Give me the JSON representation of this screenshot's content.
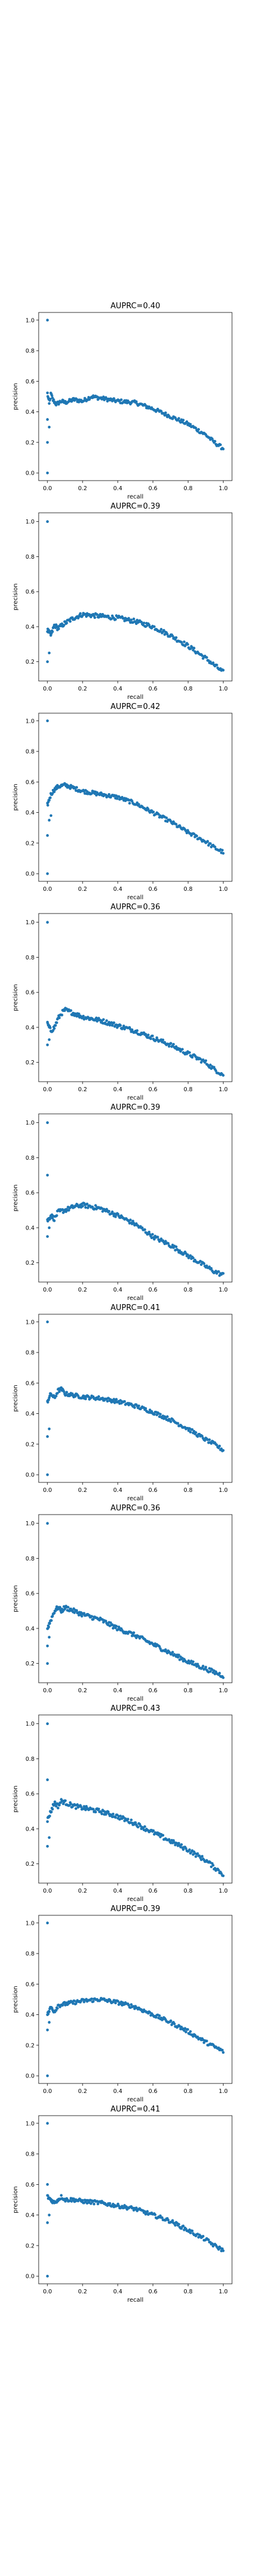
{
  "figure": {
    "background": "#ffffff"
  },
  "style": {
    "series_color": "#1f77b4",
    "axis_color": "#000000"
  },
  "chart_data": [
    {
      "type": "scatter",
      "title": "AUPRC=0.40",
      "xlabel": "recall",
      "ylabel": "precision",
      "xlim": [
        -0.05,
        1.05
      ],
      "ylim": [
        -0.05,
        1.05
      ],
      "xticks": [
        0.0,
        0.2,
        0.4,
        0.6,
        0.8,
        1.0
      ],
      "xtick_labels": [
        "0.0",
        "0.2",
        "0.4",
        "0.6",
        "0.8",
        "1.0"
      ],
      "yticks": [
        0.0,
        0.2,
        0.4,
        0.6,
        0.8,
        1.0
      ],
      "ytick_labels": [
        "0.0",
        "0.2",
        "0.4",
        "0.6",
        "0.8",
        "1.0"
      ],
      "grid": false,
      "curve": [
        [
          0.0,
          0.52
        ],
        [
          0.01,
          0.45
        ],
        [
          0.02,
          0.52
        ],
        [
          0.03,
          0.48
        ],
        [
          0.05,
          0.45
        ],
        [
          0.08,
          0.47
        ],
        [
          0.1,
          0.46
        ],
        [
          0.15,
          0.48
        ],
        [
          0.2,
          0.47
        ],
        [
          0.25,
          0.5
        ],
        [
          0.3,
          0.49
        ],
        [
          0.4,
          0.47
        ],
        [
          0.5,
          0.46
        ],
        [
          0.6,
          0.42
        ],
        [
          0.7,
          0.37
        ],
        [
          0.8,
          0.32
        ],
        [
          0.9,
          0.25
        ],
        [
          0.95,
          0.2
        ],
        [
          1.0,
          0.16
        ]
      ],
      "outliers": [
        [
          0.0,
          1.0
        ],
        [
          0.0,
          0.0
        ],
        [
          0.0,
          0.2
        ],
        [
          0.01,
          0.3
        ],
        [
          0.0,
          0.35
        ]
      ]
    },
    {
      "type": "scatter",
      "title": "AUPRC=0.39",
      "xlabel": "recall",
      "ylabel": "precision",
      "xlim": [
        -0.05,
        1.05
      ],
      "ylim": [
        0.09,
        1.05
      ],
      "xticks": [
        0.0,
        0.2,
        0.4,
        0.6,
        0.8,
        1.0
      ],
      "xtick_labels": [
        "0.0",
        "0.2",
        "0.4",
        "0.6",
        "0.8",
        "1.0"
      ],
      "yticks": [
        0.2,
        0.4,
        0.6,
        0.8,
        1.0
      ],
      "ytick_labels": [
        "0.2",
        "0.4",
        "0.6",
        "0.8",
        "1.0"
      ],
      "grid": false,
      "curve": [
        [
          0.0,
          0.38
        ],
        [
          0.02,
          0.35
        ],
        [
          0.04,
          0.41
        ],
        [
          0.06,
          0.39
        ],
        [
          0.1,
          0.42
        ],
        [
          0.15,
          0.45
        ],
        [
          0.2,
          0.47
        ],
        [
          0.3,
          0.46
        ],
        [
          0.4,
          0.45
        ],
        [
          0.5,
          0.43
        ],
        [
          0.6,
          0.4
        ],
        [
          0.7,
          0.35
        ],
        [
          0.8,
          0.29
        ],
        [
          0.9,
          0.22
        ],
        [
          0.95,
          0.18
        ],
        [
          1.0,
          0.14
        ]
      ],
      "outliers": [
        [
          0.0,
          1.0
        ],
        [
          0.0,
          0.2
        ],
        [
          0.01,
          0.25
        ]
      ]
    },
    {
      "type": "scatter",
      "title": "AUPRC=0.42",
      "xlabel": "recall",
      "ylabel": "precision",
      "xlim": [
        -0.05,
        1.05
      ],
      "ylim": [
        -0.05,
        1.05
      ],
      "xticks": [
        0.0,
        0.2,
        0.4,
        0.6,
        0.8,
        1.0
      ],
      "xtick_labels": [
        "0.0",
        "0.2",
        "0.4",
        "0.6",
        "0.8",
        "1.0"
      ],
      "yticks": [
        0.0,
        0.2,
        0.4,
        0.6,
        0.8,
        1.0
      ],
      "ytick_labels": [
        "0.0",
        "0.2",
        "0.4",
        "0.6",
        "0.8",
        "1.0"
      ],
      "grid": false,
      "curve": [
        [
          0.0,
          0.45
        ],
        [
          0.02,
          0.52
        ],
        [
          0.04,
          0.55
        ],
        [
          0.06,
          0.57
        ],
        [
          0.1,
          0.58
        ],
        [
          0.15,
          0.56
        ],
        [
          0.2,
          0.54
        ],
        [
          0.3,
          0.52
        ],
        [
          0.4,
          0.5
        ],
        [
          0.5,
          0.46
        ],
        [
          0.6,
          0.4
        ],
        [
          0.7,
          0.34
        ],
        [
          0.8,
          0.27
        ],
        [
          0.9,
          0.21
        ],
        [
          0.95,
          0.17
        ],
        [
          1.0,
          0.14
        ]
      ],
      "outliers": [
        [
          0.0,
          1.0
        ],
        [
          0.0,
          0.0
        ],
        [
          0.0,
          0.25
        ],
        [
          0.01,
          0.35
        ],
        [
          0.02,
          0.38
        ]
      ]
    },
    {
      "type": "scatter",
      "title": "AUPRC=0.36",
      "xlabel": "recall",
      "ylabel": "precision",
      "xlim": [
        -0.05,
        1.05
      ],
      "ylim": [
        0.09,
        1.05
      ],
      "xticks": [
        0.0,
        0.2,
        0.4,
        0.6,
        0.8,
        1.0
      ],
      "xtick_labels": [
        "0.0",
        "0.2",
        "0.4",
        "0.6",
        "0.8",
        "1.0"
      ],
      "yticks": [
        0.2,
        0.4,
        0.6,
        0.8,
        1.0
      ],
      "ytick_labels": [
        "0.2",
        "0.4",
        "0.6",
        "0.8",
        "1.0"
      ],
      "grid": false,
      "curve": [
        [
          0.0,
          0.42
        ],
        [
          0.02,
          0.38
        ],
        [
          0.04,
          0.4
        ],
        [
          0.06,
          0.45
        ],
        [
          0.08,
          0.48
        ],
        [
          0.1,
          0.5
        ],
        [
          0.15,
          0.48
        ],
        [
          0.2,
          0.46
        ],
        [
          0.3,
          0.44
        ],
        [
          0.4,
          0.41
        ],
        [
          0.5,
          0.38
        ],
        [
          0.6,
          0.34
        ],
        [
          0.7,
          0.3
        ],
        [
          0.8,
          0.25
        ],
        [
          0.9,
          0.2
        ],
        [
          0.95,
          0.16
        ],
        [
          1.0,
          0.13
        ]
      ],
      "outliers": [
        [
          0.0,
          1.0
        ],
        [
          0.0,
          0.3
        ],
        [
          0.01,
          0.33
        ]
      ]
    },
    {
      "type": "scatter",
      "title": "AUPRC=0.39",
      "xlabel": "recall",
      "ylabel": "precision",
      "xlim": [
        -0.05,
        1.05
      ],
      "ylim": [
        0.09,
        1.05
      ],
      "xticks": [
        0.0,
        0.2,
        0.4,
        0.6,
        0.8,
        1.0
      ],
      "xtick_labels": [
        "0.0",
        "0.2",
        "0.4",
        "0.6",
        "0.8",
        "1.0"
      ],
      "yticks": [
        0.2,
        0.4,
        0.6,
        0.8,
        1.0
      ],
      "ytick_labels": [
        "0.2",
        "0.4",
        "0.6",
        "0.8",
        "1.0"
      ],
      "grid": false,
      "curve": [
        [
          0.0,
          0.44
        ],
        [
          0.02,
          0.47
        ],
        [
          0.04,
          0.45
        ],
        [
          0.06,
          0.49
        ],
        [
          0.1,
          0.5
        ],
        [
          0.15,
          0.52
        ],
        [
          0.2,
          0.53
        ],
        [
          0.3,
          0.51
        ],
        [
          0.4,
          0.47
        ],
        [
          0.5,
          0.42
        ],
        [
          0.6,
          0.35
        ],
        [
          0.7,
          0.3
        ],
        [
          0.8,
          0.24
        ],
        [
          0.9,
          0.18
        ],
        [
          0.95,
          0.15
        ],
        [
          1.0,
          0.13
        ]
      ],
      "outliers": [
        [
          0.0,
          1.0
        ],
        [
          0.0,
          0.7
        ],
        [
          0.0,
          0.35
        ],
        [
          0.01,
          0.4
        ]
      ]
    },
    {
      "type": "scatter",
      "title": "AUPRC=0.41",
      "xlabel": "recall",
      "ylabel": "precision",
      "xlim": [
        -0.05,
        1.05
      ],
      "ylim": [
        -0.05,
        1.05
      ],
      "xticks": [
        0.0,
        0.2,
        0.4,
        0.6,
        0.8,
        1.0
      ],
      "xtick_labels": [
        "0.0",
        "0.2",
        "0.4",
        "0.6",
        "0.8",
        "1.0"
      ],
      "yticks": [
        0.0,
        0.2,
        0.4,
        0.6,
        0.8,
        1.0
      ],
      "ytick_labels": [
        "0.0",
        "0.2",
        "0.4",
        "0.6",
        "0.8",
        "1.0"
      ],
      "grid": false,
      "curve": [
        [
          0.0,
          0.48
        ],
        [
          0.02,
          0.53
        ],
        [
          0.04,
          0.5
        ],
        [
          0.06,
          0.55
        ],
        [
          0.08,
          0.56
        ],
        [
          0.1,
          0.53
        ],
        [
          0.15,
          0.52
        ],
        [
          0.2,
          0.51
        ],
        [
          0.3,
          0.5
        ],
        [
          0.4,
          0.48
        ],
        [
          0.5,
          0.45
        ],
        [
          0.6,
          0.41
        ],
        [
          0.7,
          0.36
        ],
        [
          0.8,
          0.3
        ],
        [
          0.9,
          0.23
        ],
        [
          0.95,
          0.2
        ],
        [
          1.0,
          0.16
        ]
      ],
      "outliers": [
        [
          0.0,
          1.0
        ],
        [
          0.0,
          0.0
        ],
        [
          0.0,
          0.25
        ],
        [
          0.01,
          0.3
        ]
      ]
    },
    {
      "type": "scatter",
      "title": "AUPRC=0.36",
      "xlabel": "recall",
      "ylabel": "precision",
      "xlim": [
        -0.05,
        1.05
      ],
      "ylim": [
        0.09,
        1.05
      ],
      "xticks": [
        0.0,
        0.2,
        0.4,
        0.6,
        0.8,
        1.0
      ],
      "xtick_labels": [
        "0.0",
        "0.2",
        "0.4",
        "0.6",
        "0.8",
        "1.0"
      ],
      "yticks": [
        0.2,
        0.4,
        0.6,
        0.8,
        1.0
      ],
      "ytick_labels": [
        "0.2",
        "0.4",
        "0.6",
        "0.8",
        "1.0"
      ],
      "grid": false,
      "curve": [
        [
          0.0,
          0.4
        ],
        [
          0.02,
          0.45
        ],
        [
          0.04,
          0.5
        ],
        [
          0.06,
          0.52
        ],
        [
          0.08,
          0.5
        ],
        [
          0.1,
          0.52
        ],
        [
          0.15,
          0.5
        ],
        [
          0.2,
          0.48
        ],
        [
          0.3,
          0.45
        ],
        [
          0.4,
          0.4
        ],
        [
          0.5,
          0.36
        ],
        [
          0.6,
          0.31
        ],
        [
          0.7,
          0.26
        ],
        [
          0.8,
          0.21
        ],
        [
          0.9,
          0.17
        ],
        [
          0.95,
          0.15
        ],
        [
          1.0,
          0.13
        ]
      ],
      "outliers": [
        [
          0.0,
          1.0
        ],
        [
          0.0,
          0.2
        ],
        [
          0.0,
          0.3
        ],
        [
          0.01,
          0.35
        ]
      ]
    },
    {
      "type": "scatter",
      "title": "AUPRC=0.43",
      "xlabel": "recall",
      "ylabel": "precision",
      "xlim": [
        -0.05,
        1.05
      ],
      "ylim": [
        0.09,
        1.05
      ],
      "xticks": [
        0.0,
        0.2,
        0.4,
        0.6,
        0.8,
        1.0
      ],
      "xtick_labels": [
        "0.0",
        "0.2",
        "0.4",
        "0.6",
        "0.8",
        "1.0"
      ],
      "yticks": [
        0.2,
        0.4,
        0.6,
        0.8,
        1.0
      ],
      "ytick_labels": [
        "0.2",
        "0.4",
        "0.6",
        "0.8",
        "1.0"
      ],
      "grid": false,
      "curve": [
        [
          0.0,
          0.45
        ],
        [
          0.02,
          0.5
        ],
        [
          0.04,
          0.55
        ],
        [
          0.06,
          0.53
        ],
        [
          0.08,
          0.56
        ],
        [
          0.1,
          0.55
        ],
        [
          0.15,
          0.53
        ],
        [
          0.2,
          0.52
        ],
        [
          0.3,
          0.5
        ],
        [
          0.4,
          0.47
        ],
        [
          0.5,
          0.43
        ],
        [
          0.6,
          0.38
        ],
        [
          0.7,
          0.33
        ],
        [
          0.8,
          0.28
        ],
        [
          0.9,
          0.22
        ],
        [
          0.95,
          0.18
        ],
        [
          1.0,
          0.14
        ]
      ],
      "outliers": [
        [
          0.0,
          1.0
        ],
        [
          0.0,
          0.68
        ],
        [
          0.0,
          0.3
        ],
        [
          0.01,
          0.35
        ]
      ]
    },
    {
      "type": "scatter",
      "title": "AUPRC=0.39",
      "xlabel": "recall",
      "ylabel": "precision",
      "xlim": [
        -0.05,
        1.05
      ],
      "ylim": [
        -0.05,
        1.05
      ],
      "xticks": [
        0.0,
        0.2,
        0.4,
        0.6,
        0.8,
        1.0
      ],
      "xtick_labels": [
        "0.0",
        "0.2",
        "0.4",
        "0.6",
        "0.8",
        "1.0"
      ],
      "yticks": [
        0.0,
        0.2,
        0.4,
        0.6,
        0.8,
        1.0
      ],
      "ytick_labels": [
        "0.0",
        "0.2",
        "0.4",
        "0.6",
        "0.8",
        "1.0"
      ],
      "grid": false,
      "curve": [
        [
          0.0,
          0.4
        ],
        [
          0.02,
          0.45
        ],
        [
          0.04,
          0.42
        ],
        [
          0.06,
          0.46
        ],
        [
          0.1,
          0.47
        ],
        [
          0.15,
          0.48
        ],
        [
          0.2,
          0.49
        ],
        [
          0.3,
          0.5
        ],
        [
          0.4,
          0.48
        ],
        [
          0.5,
          0.45
        ],
        [
          0.6,
          0.4
        ],
        [
          0.7,
          0.35
        ],
        [
          0.8,
          0.29
        ],
        [
          0.9,
          0.22
        ],
        [
          0.95,
          0.19
        ],
        [
          1.0,
          0.16
        ]
      ],
      "outliers": [
        [
          0.0,
          1.0
        ],
        [
          0.0,
          0.0
        ],
        [
          0.0,
          0.3
        ],
        [
          0.01,
          0.35
        ]
      ]
    },
    {
      "type": "scatter",
      "title": "AUPRC=0.41",
      "xlabel": "recall",
      "ylabel": "precision",
      "xlim": [
        -0.05,
        1.05
      ],
      "ylim": [
        -0.05,
        1.05
      ],
      "xticks": [
        0.0,
        0.2,
        0.4,
        0.6,
        0.8,
        1.0
      ],
      "xtick_labels": [
        "0.0",
        "0.2",
        "0.4",
        "0.6",
        "0.8",
        "1.0"
      ],
      "yticks": [
        0.0,
        0.2,
        0.4,
        0.6,
        0.8,
        1.0
      ],
      "ytick_labels": [
        "0.0",
        "0.2",
        "0.4",
        "0.6",
        "0.8",
        "1.0"
      ],
      "grid": false,
      "curve": [
        [
          0.0,
          0.52
        ],
        [
          0.02,
          0.5
        ],
        [
          0.04,
          0.48
        ],
        [
          0.06,
          0.5
        ],
        [
          0.08,
          0.52
        ],
        [
          0.1,
          0.5
        ],
        [
          0.15,
          0.5
        ],
        [
          0.2,
          0.49
        ],
        [
          0.3,
          0.48
        ],
        [
          0.4,
          0.46
        ],
        [
          0.5,
          0.44
        ],
        [
          0.6,
          0.4
        ],
        [
          0.7,
          0.36
        ],
        [
          0.8,
          0.3
        ],
        [
          0.9,
          0.24
        ],
        [
          0.95,
          0.2
        ],
        [
          1.0,
          0.17
        ]
      ],
      "outliers": [
        [
          0.0,
          1.0
        ],
        [
          0.0,
          0.0
        ],
        [
          0.0,
          0.6
        ],
        [
          0.0,
          0.35
        ],
        [
          0.01,
          0.4
        ]
      ]
    }
  ]
}
